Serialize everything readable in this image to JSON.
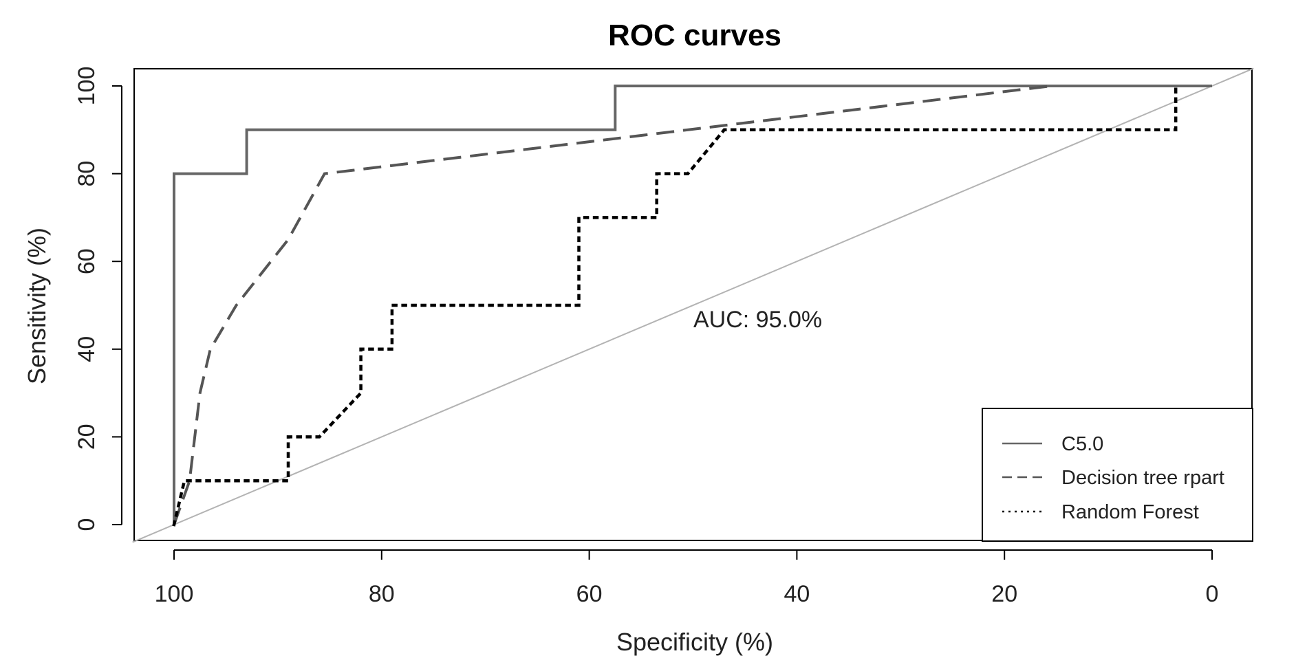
{
  "chart_data": {
    "type": "line",
    "title": "ROC curves",
    "xlabel": "Specificity (%)",
    "ylabel": "Sensitivity (%)",
    "x_reversed": true,
    "xlim": [
      100,
      0
    ],
    "ylim": [
      0,
      100
    ],
    "xticks": [
      100,
      80,
      60,
      40,
      20,
      0
    ],
    "yticks": [
      0,
      20,
      40,
      60,
      80,
      100
    ],
    "grid": false,
    "legend_position": "bottom-right",
    "annotation": "AUC: 95.0%",
    "reference_line": {
      "x": [
        100,
        0
      ],
      "y": [
        0,
        100
      ],
      "color": "#b3b3b3"
    },
    "series": [
      {
        "name": "C5.0",
        "style": "solid",
        "color": "#666666",
        "x": [
          100,
          100,
          93,
          93,
          57.5,
          57.5,
          0
        ],
        "y": [
          0,
          80,
          80,
          90,
          90,
          100,
          100
        ]
      },
      {
        "name": "Decision tree rpart",
        "style": "dashed",
        "color": "#555555",
        "x": [
          100,
          98.5,
          97.5,
          96.5,
          94,
          89,
          85.5,
          15.5
        ],
        "y": [
          0,
          10,
          30,
          40,
          50,
          65,
          80,
          100
        ]
      },
      {
        "name": "Random Forest",
        "style": "dotted",
        "color": "#000000",
        "x": [
          100,
          99,
          89,
          89,
          86,
          82,
          82,
          79,
          79,
          61,
          61,
          53.5,
          53.5,
          50.5,
          47,
          3.5,
          3.5
        ],
        "y": [
          0,
          10,
          10,
          20,
          20,
          30,
          40,
          40,
          50,
          50,
          70,
          70,
          80,
          80,
          90,
          90,
          100
        ]
      }
    ]
  }
}
